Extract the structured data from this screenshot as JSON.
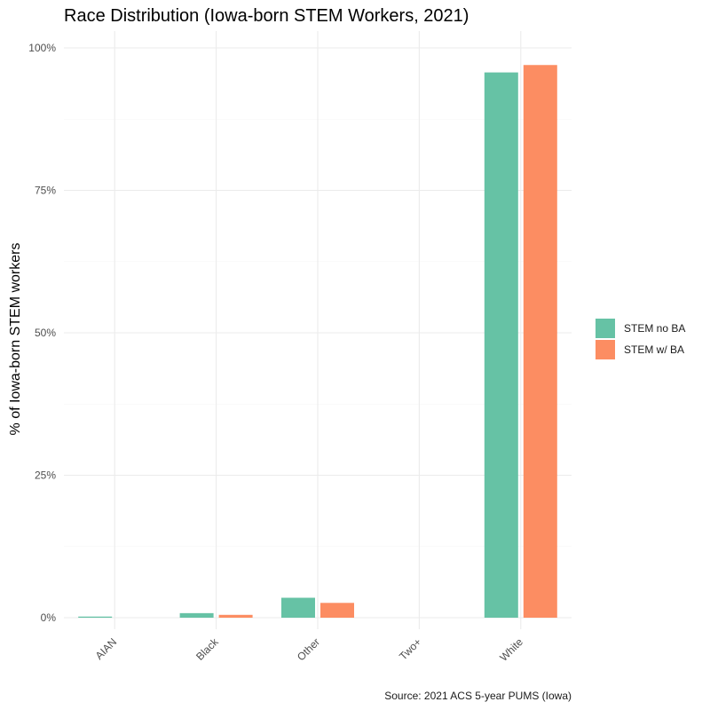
{
  "chart_data": {
    "type": "bar",
    "title": "Race Distribution (Iowa-born STEM Workers, 2021)",
    "xlabel": "",
    "ylabel": "% of Iowa-born STEM workers",
    "caption": "Source: 2021 ACS 5-year PUMS (Iowa)",
    "categories": [
      "AIAN",
      "Black",
      "Other",
      "Two+",
      "White"
    ],
    "series": [
      {
        "name": "STEM no BA",
        "color": "#66c2a5",
        "values": [
          0.2,
          0.8,
          3.5,
          0.0,
          95.7
        ]
      },
      {
        "name": "STEM w/ BA",
        "color": "#fc8d62",
        "values": [
          0.0,
          0.5,
          2.6,
          0.0,
          97.0
        ]
      }
    ],
    "ylim": [
      0,
      100
    ],
    "yticks": [
      0,
      25,
      50,
      75,
      100
    ],
    "ytick_labels": [
      "0%",
      "25%",
      "50%",
      "75%",
      "100%"
    ],
    "grid": true,
    "legend_position": "right"
  }
}
